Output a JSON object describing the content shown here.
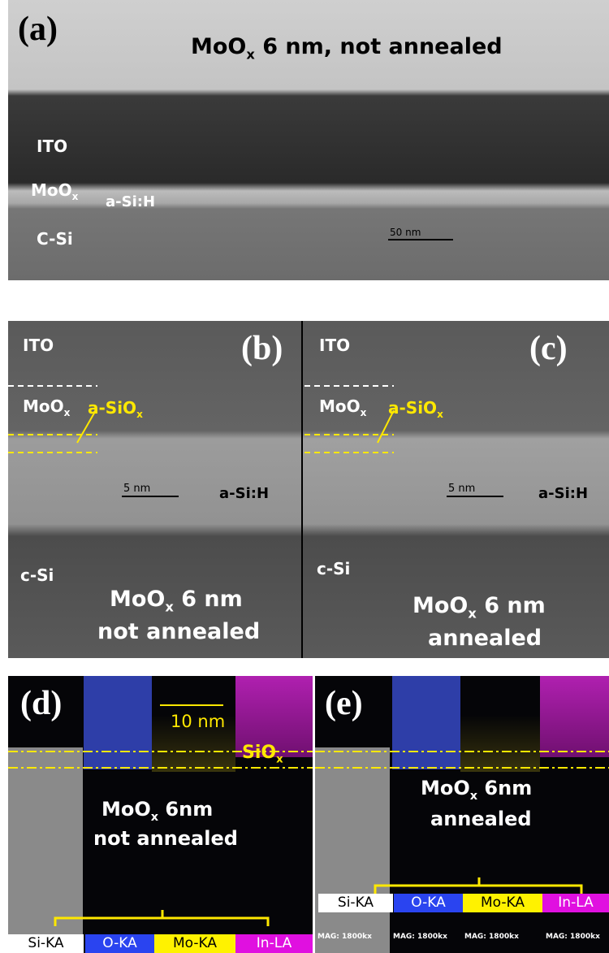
{
  "panel_a": {
    "label": "(a)",
    "title": {
      "text": "MoO",
      "sub": "x",
      "rest": " 6 nm, not annealed"
    },
    "layers": [
      {
        "text": "ITO"
      },
      {
        "text": "MoO",
        "sub": "x"
      },
      {
        "text": "a-Si:H"
      },
      {
        "text": "C-Si"
      }
    ],
    "scale_bar": "50 nm"
  },
  "panel_b": {
    "label": "(b)",
    "layers": [
      {
        "text": "ITO"
      },
      {
        "text": "MoO",
        "sub": "x"
      },
      {
        "text": "a-SiO",
        "sub": "x"
      },
      {
        "text": "a-Si:H"
      },
      {
        "text": "c-Si"
      }
    ],
    "scale_bar": "5 nm",
    "caption": [
      {
        "text": "MoO",
        "sub": "x",
        "rest": " 6 nm"
      },
      {
        "text": "not annealed"
      }
    ]
  },
  "panel_c": {
    "label": "(c)",
    "layers": [
      {
        "text": "ITO"
      },
      {
        "text": "MoO",
        "sub": "x"
      },
      {
        "text": "a-SiO",
        "sub": "x"
      },
      {
        "text": "a-Si:H"
      },
      {
        "text": "c-Si"
      }
    ],
    "scale_bar": "5 nm",
    "caption": [
      {
        "text": "MoO",
        "sub": "x",
        "rest": " 6 nm"
      },
      {
        "text": "annealed"
      }
    ]
  },
  "panel_d": {
    "label": "(d)",
    "scale_bar": "10 nm",
    "interlayer": {
      "text": "SiO",
      "sub": "x"
    },
    "caption": [
      {
        "text": "MoO",
        "sub": "x",
        "rest": " 6nm"
      },
      {
        "text": "not annealed"
      }
    ],
    "legend": [
      "Si-KA",
      "O-KA",
      "Mo-KA",
      "In-LA"
    ]
  },
  "panel_e": {
    "label": "(e)",
    "caption": [
      {
        "text": "MoO",
        "sub": "x",
        "rest": " 6nm"
      },
      {
        "text": "annealed"
      }
    ],
    "legend": [
      "Si-KA",
      "O-KA",
      "Mo-KA",
      "In-LA"
    ],
    "magnification": [
      "MAG: 1800kx",
      "MAG: 1800kx",
      "MAG: 1800kx",
      "MAG: 1800kx"
    ]
  }
}
